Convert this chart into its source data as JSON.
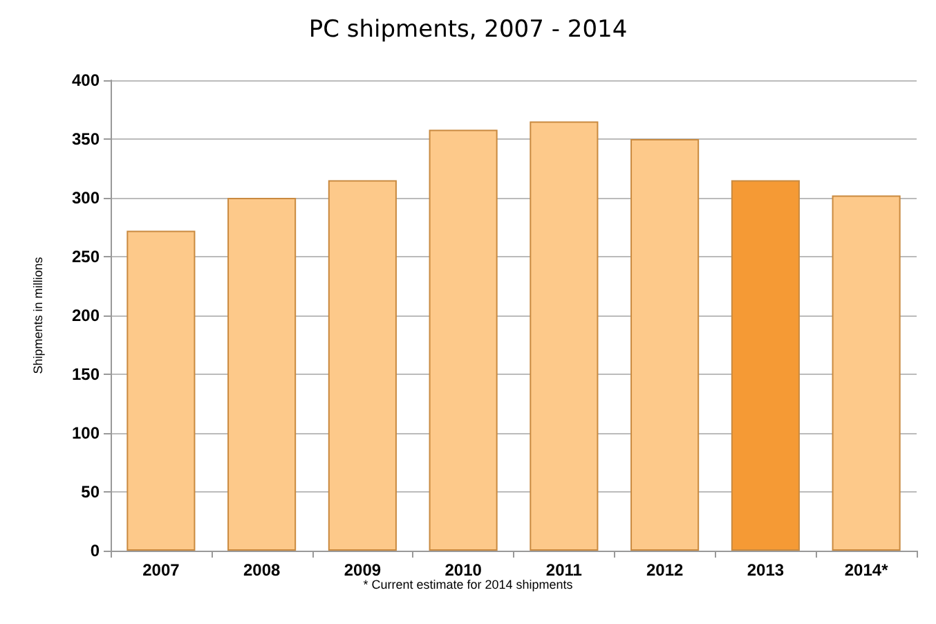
{
  "chart_data": {
    "type": "bar",
    "title": "PC shipments, 2007 - 2014",
    "ylabel": "Shipments in millions",
    "categories": [
      "2007",
      "2008",
      "2009",
      "2010",
      "2011",
      "2012",
      "2013",
      "2014*"
    ],
    "values": [
      272,
      300,
      315,
      358,
      365,
      350,
      315,
      302
    ],
    "colors": [
      "#fdc98a",
      "#fdc98a",
      "#fdc98a",
      "#fdc98a",
      "#fdc98a",
      "#fdc98a",
      "#f59a35",
      "#fdc98a"
    ],
    "ylim": [
      0,
      400
    ],
    "yticks": [
      0,
      50,
      100,
      150,
      200,
      250,
      300,
      350,
      400
    ],
    "grid": "y",
    "annotations": [
      "* Current estimate for 2014 shipments"
    ]
  }
}
